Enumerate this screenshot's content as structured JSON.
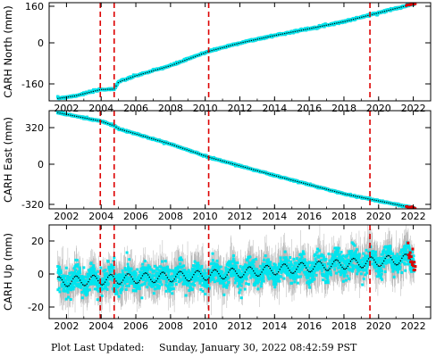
{
  "footer": {
    "prefix": "Plot Last Updated:",
    "timestamp": "Sunday, January 30, 2022 08:42:59 PST"
  },
  "colors": {
    "data": "#00e5ee",
    "trend": "#000000",
    "error_bars": "#b4b4b4",
    "recent": "#dd0000",
    "events": "#dd0000"
  },
  "event_years": [
    2003.95,
    2004.75,
    2010.2,
    2019.5
  ],
  "x_ticks": [
    "2002",
    "2004",
    "2006",
    "2008",
    "2010",
    "2012",
    "2014",
    "2016",
    "2018",
    "2020",
    "2022"
  ],
  "chart_data": [
    {
      "type": "scatter",
      "ylabel": "CARH North (mm)",
      "xlim": [
        2001.0,
        2023.0
      ],
      "ylim": [
        -215,
        175
      ],
      "y_ticks": [
        "160",
        "0",
        "-160"
      ],
      "grid": false,
      "series": [
        {
          "x": [
            2001.5,
            2002.5,
            2003.95,
            2004.75,
            2005.0,
            2006.0,
            2008.0,
            2010.2,
            2012.0,
            2014.0,
            2016.0,
            2018.0,
            2020.0,
            2022.1
          ],
          "y": [
            -205,
            -195,
            -170,
            -168,
            -140,
            -115,
            -75,
            -18,
            15,
            45,
            72,
            100,
            135,
            172
          ]
        }
      ]
    },
    {
      "type": "scatter",
      "ylabel": "CARH East (mm)",
      "xlim": [
        2001.0,
        2023.0
      ],
      "ylim": [
        -350,
        400
      ],
      "y_ticks": [
        "320",
        "0",
        "-320"
      ],
      "grid": false,
      "series": [
        {
          "x": [
            2001.5,
            2004.0,
            2004.75,
            2005.0,
            2008.0,
            2010.2,
            2014.0,
            2018.0,
            2022.1
          ],
          "y": [
            385,
            320,
            285,
            262,
            145,
            45,
            -95,
            -235,
            -345
          ]
        }
      ]
    },
    {
      "type": "scatter",
      "ylabel": "CARH Up (mm)",
      "xlim": [
        2001.0,
        2023.0
      ],
      "ylim": [
        -28,
        28
      ],
      "y_ticks": [
        "20",
        "0",
        "-20"
      ],
      "grid": false,
      "series": [
        {
          "trend_x": [
            2001.5,
            2010.2,
            2022.1
          ],
          "trend_y": [
            -6,
            -2,
            8
          ],
          "seasonal_amplitude_mm": 3
        }
      ]
    }
  ]
}
